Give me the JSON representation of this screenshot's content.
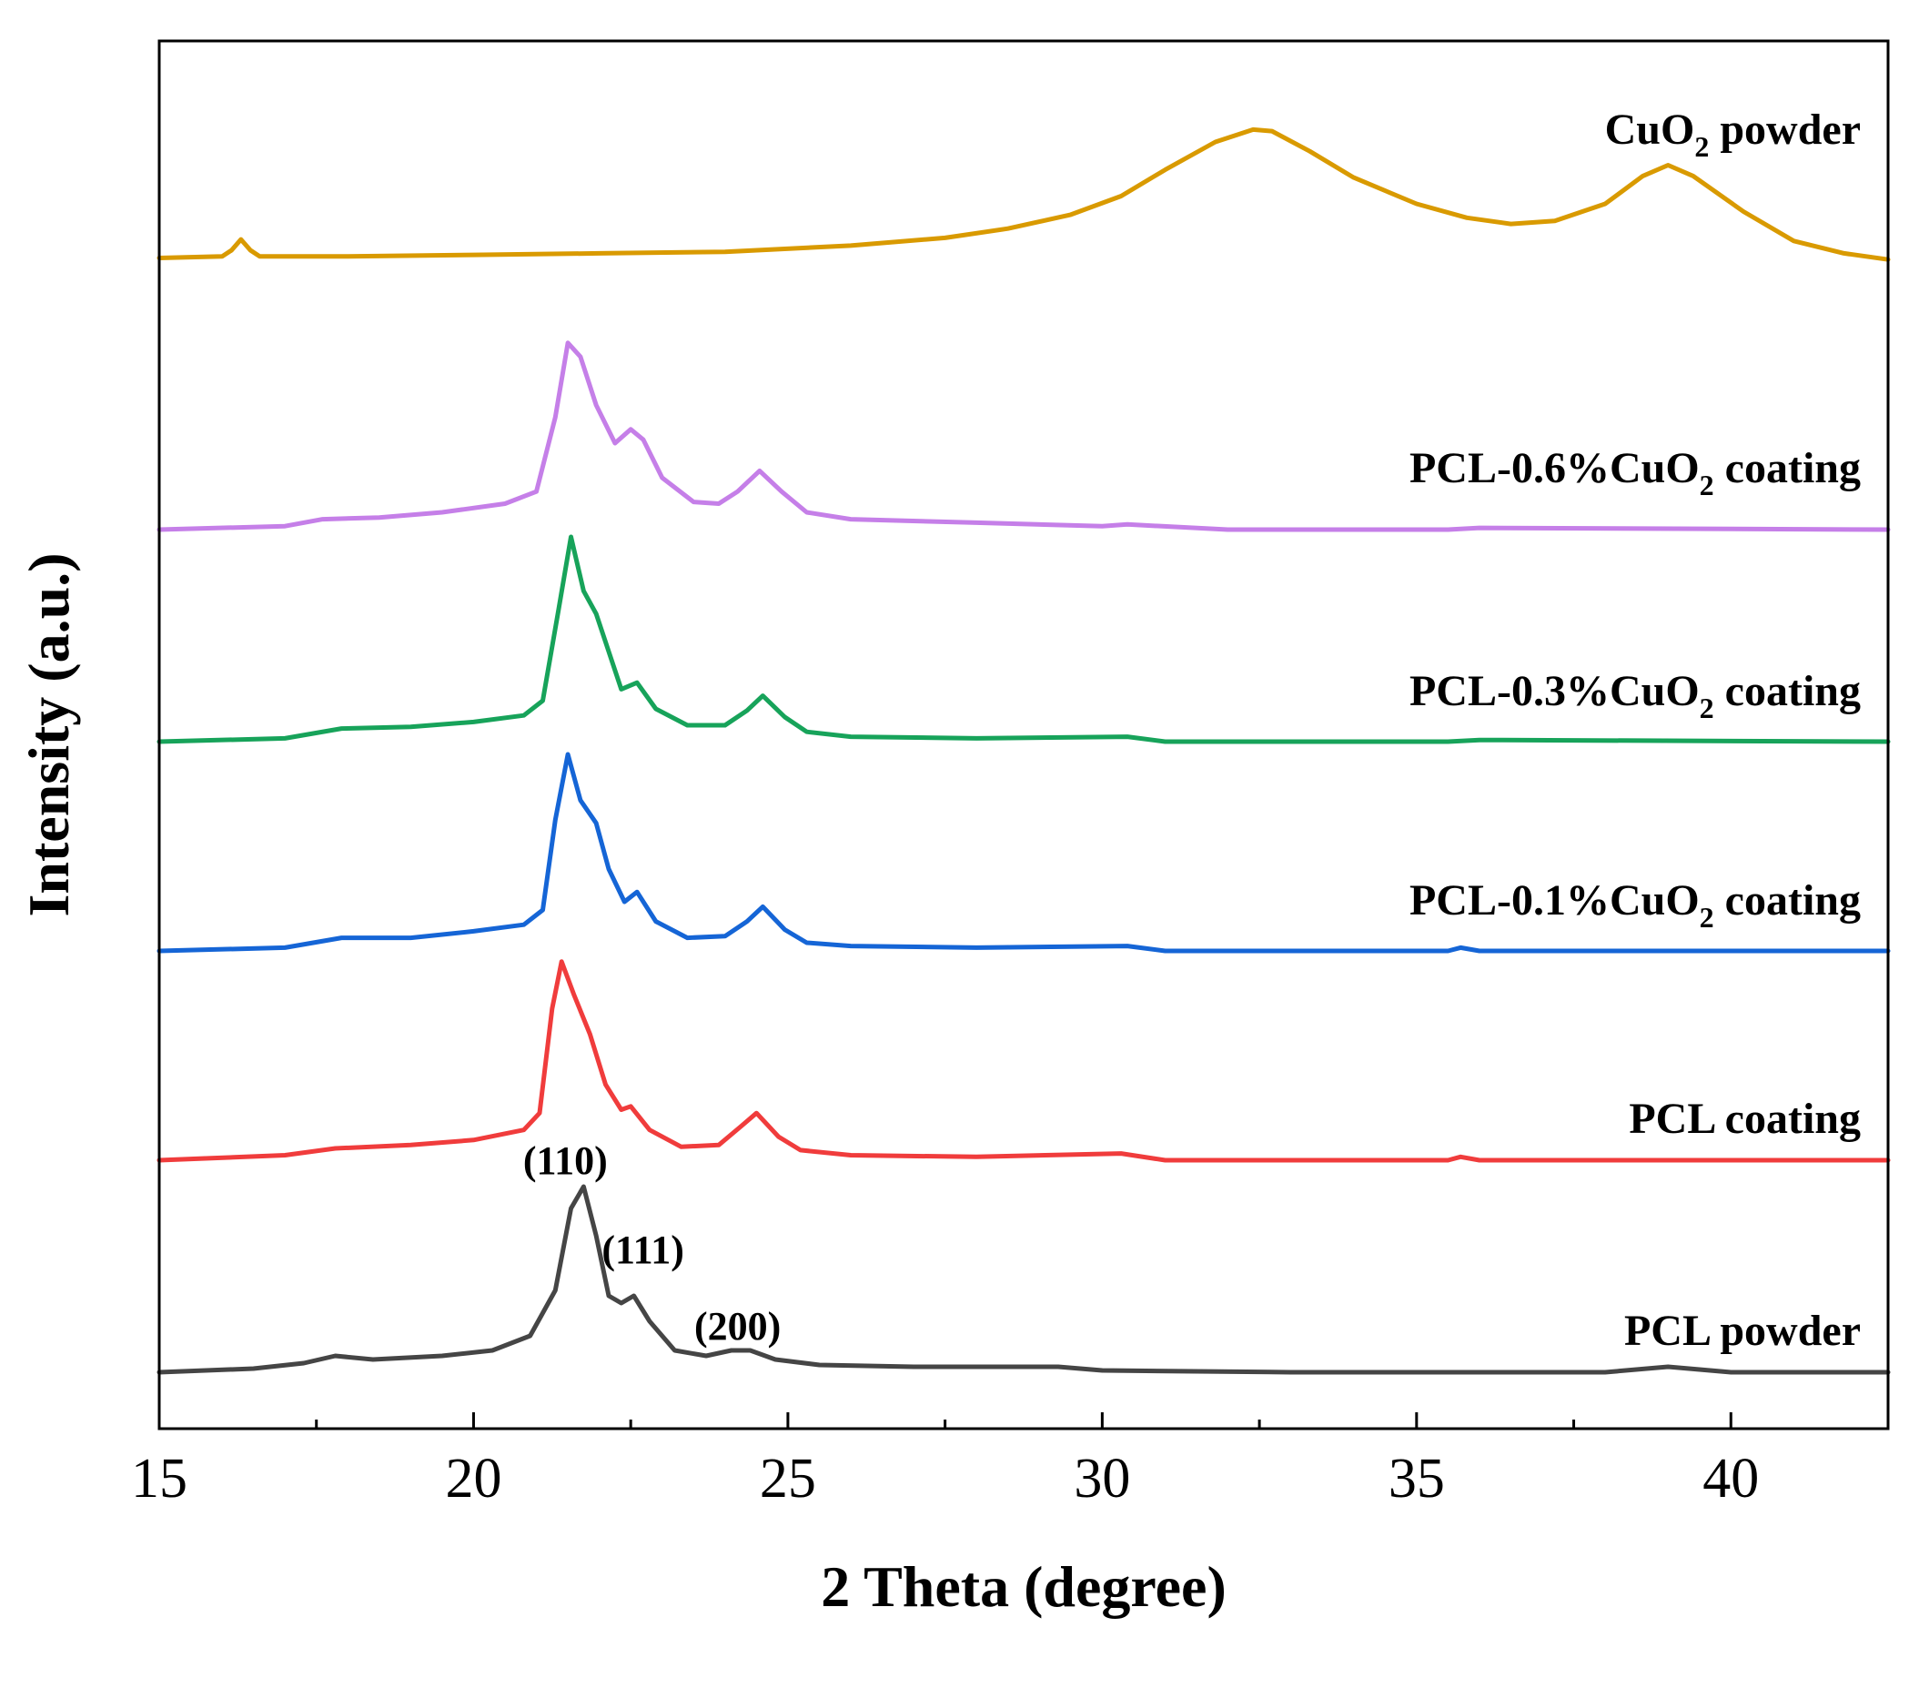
{
  "chart_data": {
    "type": "line",
    "title": "",
    "xlabel": "2 Theta (degree)",
    "ylabel": "Intensity (a.u.)",
    "xlim": [
      15,
      42.5
    ],
    "x_ticks": [
      15,
      20,
      25,
      30,
      35,
      40
    ],
    "x_tick_labels": [
      "15",
      "20",
      "25",
      "30",
      "35",
      "40"
    ],
    "y_ticks_shown": false,
    "legend": "inline labels at right",
    "series": [
      {
        "name": "CuO2 powder",
        "label_main": "CuO",
        "label_sub": "2",
        "label_tail": " powder",
        "color": "#D99A00",
        "offset": 5.0,
        "points": [
          [
            15,
            0.05
          ],
          [
            16,
            0.06
          ],
          [
            16.15,
            0.1
          ],
          [
            16.3,
            0.17
          ],
          [
            16.45,
            0.1
          ],
          [
            16.6,
            0.06
          ],
          [
            18,
            0.06
          ],
          [
            20,
            0.07
          ],
          [
            22,
            0.08
          ],
          [
            24,
            0.09
          ],
          [
            26,
            0.13
          ],
          [
            27.5,
            0.18
          ],
          [
            28.5,
            0.24
          ],
          [
            29.5,
            0.33
          ],
          [
            30.3,
            0.45
          ],
          [
            31,
            0.62
          ],
          [
            31.8,
            0.8
          ],
          [
            32.4,
            0.88
          ],
          [
            32.7,
            0.87
          ],
          [
            33.3,
            0.74
          ],
          [
            34,
            0.57
          ],
          [
            35,
            0.4
          ],
          [
            35.8,
            0.31
          ],
          [
            36.5,
            0.27
          ],
          [
            37.2,
            0.29
          ],
          [
            38,
            0.4
          ],
          [
            38.6,
            0.58
          ],
          [
            39,
            0.65
          ],
          [
            39.4,
            0.58
          ],
          [
            40.2,
            0.35
          ],
          [
            41,
            0.16
          ],
          [
            41.8,
            0.08
          ],
          [
            42.5,
            0.04
          ]
        ]
      },
      {
        "name": "PCL-0.6%CuO2 coating",
        "label_main": "PCL-0.6%CuO",
        "label_sub": "2",
        "label_tail": " coating",
        "color": "#C57FE8",
        "offset": 4.0,
        "points": [
          [
            15,
            0.0
          ],
          [
            17,
            0.02
          ],
          [
            17.6,
            0.06
          ],
          [
            18.5,
            0.07
          ],
          [
            19.5,
            0.1
          ],
          [
            20.5,
            0.15
          ],
          [
            21,
            0.22
          ],
          [
            21.3,
            0.65
          ],
          [
            21.5,
            1.08
          ],
          [
            21.7,
            1.0
          ],
          [
            21.95,
            0.72
          ],
          [
            22.25,
            0.5
          ],
          [
            22.5,
            0.58
          ],
          [
            22.7,
            0.52
          ],
          [
            23,
            0.3
          ],
          [
            23.5,
            0.16
          ],
          [
            23.9,
            0.15
          ],
          [
            24.2,
            0.22
          ],
          [
            24.55,
            0.34
          ],
          [
            24.9,
            0.22
          ],
          [
            25.3,
            0.1
          ],
          [
            26,
            0.06
          ],
          [
            28,
            0.04
          ],
          [
            30,
            0.02
          ],
          [
            30.4,
            0.03
          ],
          [
            32,
            0.0
          ],
          [
            35.5,
            0.0
          ],
          [
            36,
            0.01
          ],
          [
            42.5,
            0.0
          ]
        ]
      },
      {
        "name": "PCL-0.3%CuO2 coating",
        "label_main": "PCL-0.3%CuO",
        "label_sub": "2",
        "label_tail": " coating",
        "color": "#17A35A",
        "offset": 3.0,
        "points": [
          [
            15,
            0.0
          ],
          [
            17,
            0.02
          ],
          [
            17.9,
            0.08
          ],
          [
            19,
            0.09
          ],
          [
            20,
            0.12
          ],
          [
            20.8,
            0.16
          ],
          [
            21.1,
            0.25
          ],
          [
            21.35,
            0.8
          ],
          [
            21.55,
            1.25
          ],
          [
            21.75,
            0.92
          ],
          [
            21.95,
            0.78
          ],
          [
            22.15,
            0.55
          ],
          [
            22.35,
            0.32
          ],
          [
            22.6,
            0.36
          ],
          [
            22.9,
            0.2
          ],
          [
            23.4,
            0.1
          ],
          [
            24,
            0.1
          ],
          [
            24.35,
            0.19
          ],
          [
            24.6,
            0.28
          ],
          [
            24.95,
            0.15
          ],
          [
            25.3,
            0.06
          ],
          [
            26,
            0.03
          ],
          [
            28,
            0.02
          ],
          [
            30.4,
            0.03
          ],
          [
            31,
            0.0
          ],
          [
            35.5,
            0.0
          ],
          [
            36,
            0.01
          ],
          [
            42.5,
            0.0
          ]
        ]
      },
      {
        "name": "PCL-0.1%CuO2 coating",
        "label_main": "PCL-0.1%CuO",
        "label_sub": "2",
        "label_tail": " coating",
        "color": "#1565D6",
        "offset": 2.0,
        "points": [
          [
            15,
            0.0
          ],
          [
            17,
            0.02
          ],
          [
            17.9,
            0.08
          ],
          [
            19,
            0.08
          ],
          [
            20,
            0.12
          ],
          [
            20.8,
            0.16
          ],
          [
            21.1,
            0.25
          ],
          [
            21.3,
            0.8
          ],
          [
            21.5,
            1.2
          ],
          [
            21.7,
            0.92
          ],
          [
            21.95,
            0.78
          ],
          [
            22.15,
            0.5
          ],
          [
            22.4,
            0.3
          ],
          [
            22.6,
            0.36
          ],
          [
            22.9,
            0.18
          ],
          [
            23.4,
            0.08
          ],
          [
            24,
            0.09
          ],
          [
            24.35,
            0.18
          ],
          [
            24.6,
            0.27
          ],
          [
            24.95,
            0.13
          ],
          [
            25.3,
            0.05
          ],
          [
            26,
            0.03
          ],
          [
            28,
            0.02
          ],
          [
            30.4,
            0.03
          ],
          [
            31,
            0.0
          ],
          [
            35.5,
            0.0
          ],
          [
            35.7,
            0.02
          ],
          [
            36,
            0.0
          ],
          [
            42.5,
            0.0
          ]
        ]
      },
      {
        "name": "PCL coating",
        "label_main": "PCL coating",
        "label_sub": "",
        "label_tail": "",
        "color": "#F03C3C",
        "offset": 1.0,
        "points": [
          [
            15,
            0.0
          ],
          [
            17,
            0.03
          ],
          [
            17.8,
            0.07
          ],
          [
            19,
            0.09
          ],
          [
            20,
            0.12
          ],
          [
            20.8,
            0.18
          ],
          [
            21.05,
            0.28
          ],
          [
            21.25,
            0.9
          ],
          [
            21.4,
            1.18
          ],
          [
            21.6,
            0.98
          ],
          [
            21.85,
            0.75
          ],
          [
            22.1,
            0.45
          ],
          [
            22.35,
            0.3
          ],
          [
            22.5,
            0.32
          ],
          [
            22.8,
            0.18
          ],
          [
            23.3,
            0.08
          ],
          [
            23.9,
            0.09
          ],
          [
            24.25,
            0.2
          ],
          [
            24.5,
            0.28
          ],
          [
            24.85,
            0.14
          ],
          [
            25.2,
            0.06
          ],
          [
            26,
            0.03
          ],
          [
            28,
            0.02
          ],
          [
            30.3,
            0.04
          ],
          [
            31,
            0.0
          ],
          [
            35.5,
            0.0
          ],
          [
            35.7,
            0.02
          ],
          [
            36,
            0.0
          ],
          [
            42.5,
            0.0
          ]
        ]
      },
      {
        "name": "PCL powder",
        "label_main": "PCL powder",
        "label_sub": "",
        "label_tail": "",
        "color": "#454545",
        "offset": 0.0,
        "points": [
          [
            15,
            0.0
          ],
          [
            16.5,
            0.02
          ],
          [
            17.3,
            0.05
          ],
          [
            17.8,
            0.09
          ],
          [
            18.4,
            0.07
          ],
          [
            19.5,
            0.09
          ],
          [
            20.3,
            0.12
          ],
          [
            20.9,
            0.2
          ],
          [
            21.3,
            0.45
          ],
          [
            21.55,
            0.9
          ],
          [
            21.75,
            1.02
          ],
          [
            21.95,
            0.75
          ],
          [
            22.15,
            0.42
          ],
          [
            22.35,
            0.38
          ],
          [
            22.55,
            0.42
          ],
          [
            22.8,
            0.28
          ],
          [
            23.2,
            0.12
          ],
          [
            23.7,
            0.09
          ],
          [
            24.1,
            0.12
          ],
          [
            24.4,
            0.12
          ],
          [
            24.8,
            0.07
          ],
          [
            25.5,
            0.04
          ],
          [
            27,
            0.03
          ],
          [
            29.3,
            0.03
          ],
          [
            30,
            0.01
          ],
          [
            33,
            0.0
          ],
          [
            38,
            0.0
          ],
          [
            39,
            0.03
          ],
          [
            40,
            0.0
          ],
          [
            42.5,
            0.0
          ]
        ]
      }
    ],
    "annotations": [
      {
        "text": "(110)",
        "x": 21.75
      },
      {
        "text": "(111)",
        "x": 22.55
      },
      {
        "text": "(200)",
        "x": 24.2
      }
    ]
  }
}
